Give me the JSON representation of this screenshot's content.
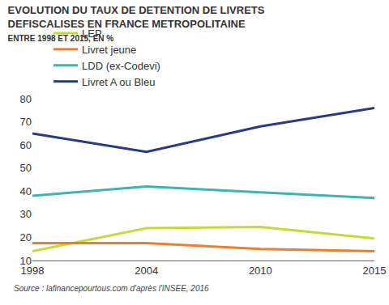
{
  "chart_data": {
    "type": "line",
    "title": "EVOLUTION DU TAUX DE DETENTION DE LIVRETS\nDEFISCALISES EN FRANCE METROPOLITAINE",
    "subtitle": "ENTRE 1998 ET 2015, EN %",
    "source": "Source : lafinancepourtous.com d'après l'INSEE, 2016",
    "categories": [
      "1998",
      "2004",
      "2010",
      "2015"
    ],
    "series": [
      {
        "name": "LEP",
        "color": "#c5d93c",
        "values": [
          14,
          24,
          24.5,
          19.5
        ]
      },
      {
        "name": "Livret jeune",
        "color": "#f07c2c",
        "values": [
          17.5,
          17.5,
          15,
          14
        ]
      },
      {
        "name": "LDD (ex-Codevi)",
        "color": "#3db3b3",
        "values": [
          38,
          42,
          39.5,
          37
        ]
      },
      {
        "name": "Livret A ou Bleu",
        "color": "#293a8a",
        "values": [
          65,
          57,
          68,
          76
        ]
      }
    ],
    "ylim": [
      10,
      80
    ],
    "yticks": [
      10,
      20,
      30,
      40,
      50,
      60,
      70,
      80
    ],
    "grid": false,
    "legend": "top"
  }
}
